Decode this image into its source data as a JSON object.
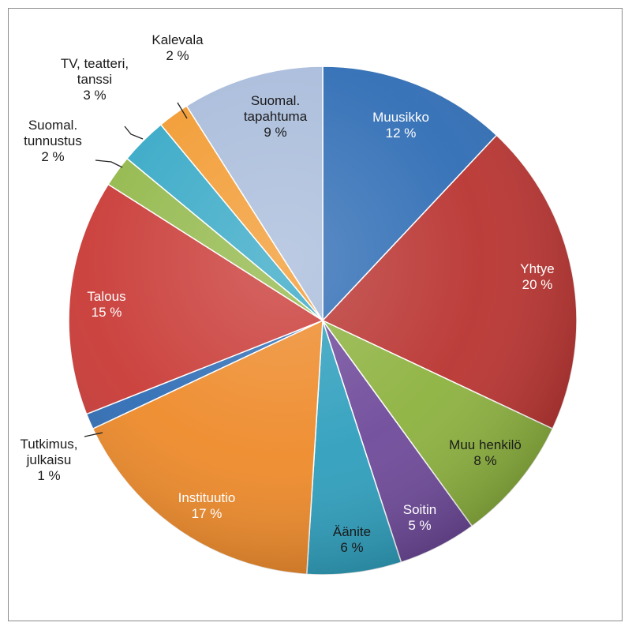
{
  "chart_data": {
    "type": "pie",
    "title": "",
    "slices": [
      {
        "label": [
          "Muusikko"
        ],
        "percent_label": "12 %",
        "value": 12,
        "color": "#2f6db5",
        "label_color": "#ffffff"
      },
      {
        "label": [
          "Yhtye"
        ],
        "percent_label": "20 %",
        "value": 20,
        "color": "#b93431",
        "label_color": "#ffffff"
      },
      {
        "label": [
          "Muu henkilö"
        ],
        "percent_label": "8 %",
        "value": 8,
        "color": "#8db23f",
        "label_color": "#1a1a1a"
      },
      {
        "label": [
          "Soitin"
        ],
        "percent_label": "5 %",
        "value": 5,
        "color": "#6f4a9a",
        "label_color": "#ffffff"
      },
      {
        "label": [
          "Äänite"
        ],
        "percent_label": "6 %",
        "value": 6,
        "color": "#2f9fbd",
        "label_color": "#1a1a1a"
      },
      {
        "label": [
          "Instituutio"
        ],
        "percent_label": "17 %",
        "value": 17,
        "color": "#ee8a2a",
        "label_color": "#ffffff"
      },
      {
        "label": [
          "Tutkimus,",
          "julkaisu"
        ],
        "percent_label": "1 %",
        "value": 1,
        "color": "#2f6db5",
        "label_color": "#1a1a1a",
        "outside": true
      },
      {
        "label": [
          "Talous"
        ],
        "percent_label": "15 %",
        "value": 15,
        "color": "#c93a36",
        "label_color": "#ffffff"
      },
      {
        "label": [
          "Suomal.",
          "tunnustus"
        ],
        "percent_label": "2 %",
        "value": 2,
        "color": "#92b84a",
        "label_color": "#1a1a1a",
        "outside": true
      },
      {
        "label": [
          "TV, teatteri,",
          "tanssi"
        ],
        "percent_label": "3 %",
        "value": 3,
        "color": "#36a8c6",
        "label_color": "#1a1a1a",
        "outside": true
      },
      {
        "label": [
          "Kalevala"
        ],
        "percent_label": "2 %",
        "value": 2,
        "color": "#f29a30",
        "label_color": "#1a1a1a",
        "outside": true
      },
      {
        "label": [
          "Suomal.",
          "tapahtuma"
        ],
        "percent_label": "9 %",
        "value": 9,
        "color": "#a9bcdb",
        "label_color": "#1a1a1a"
      }
    ],
    "start_angle": "top (12 o'clock)",
    "direction": "clockwise",
    "legend": "none"
  }
}
